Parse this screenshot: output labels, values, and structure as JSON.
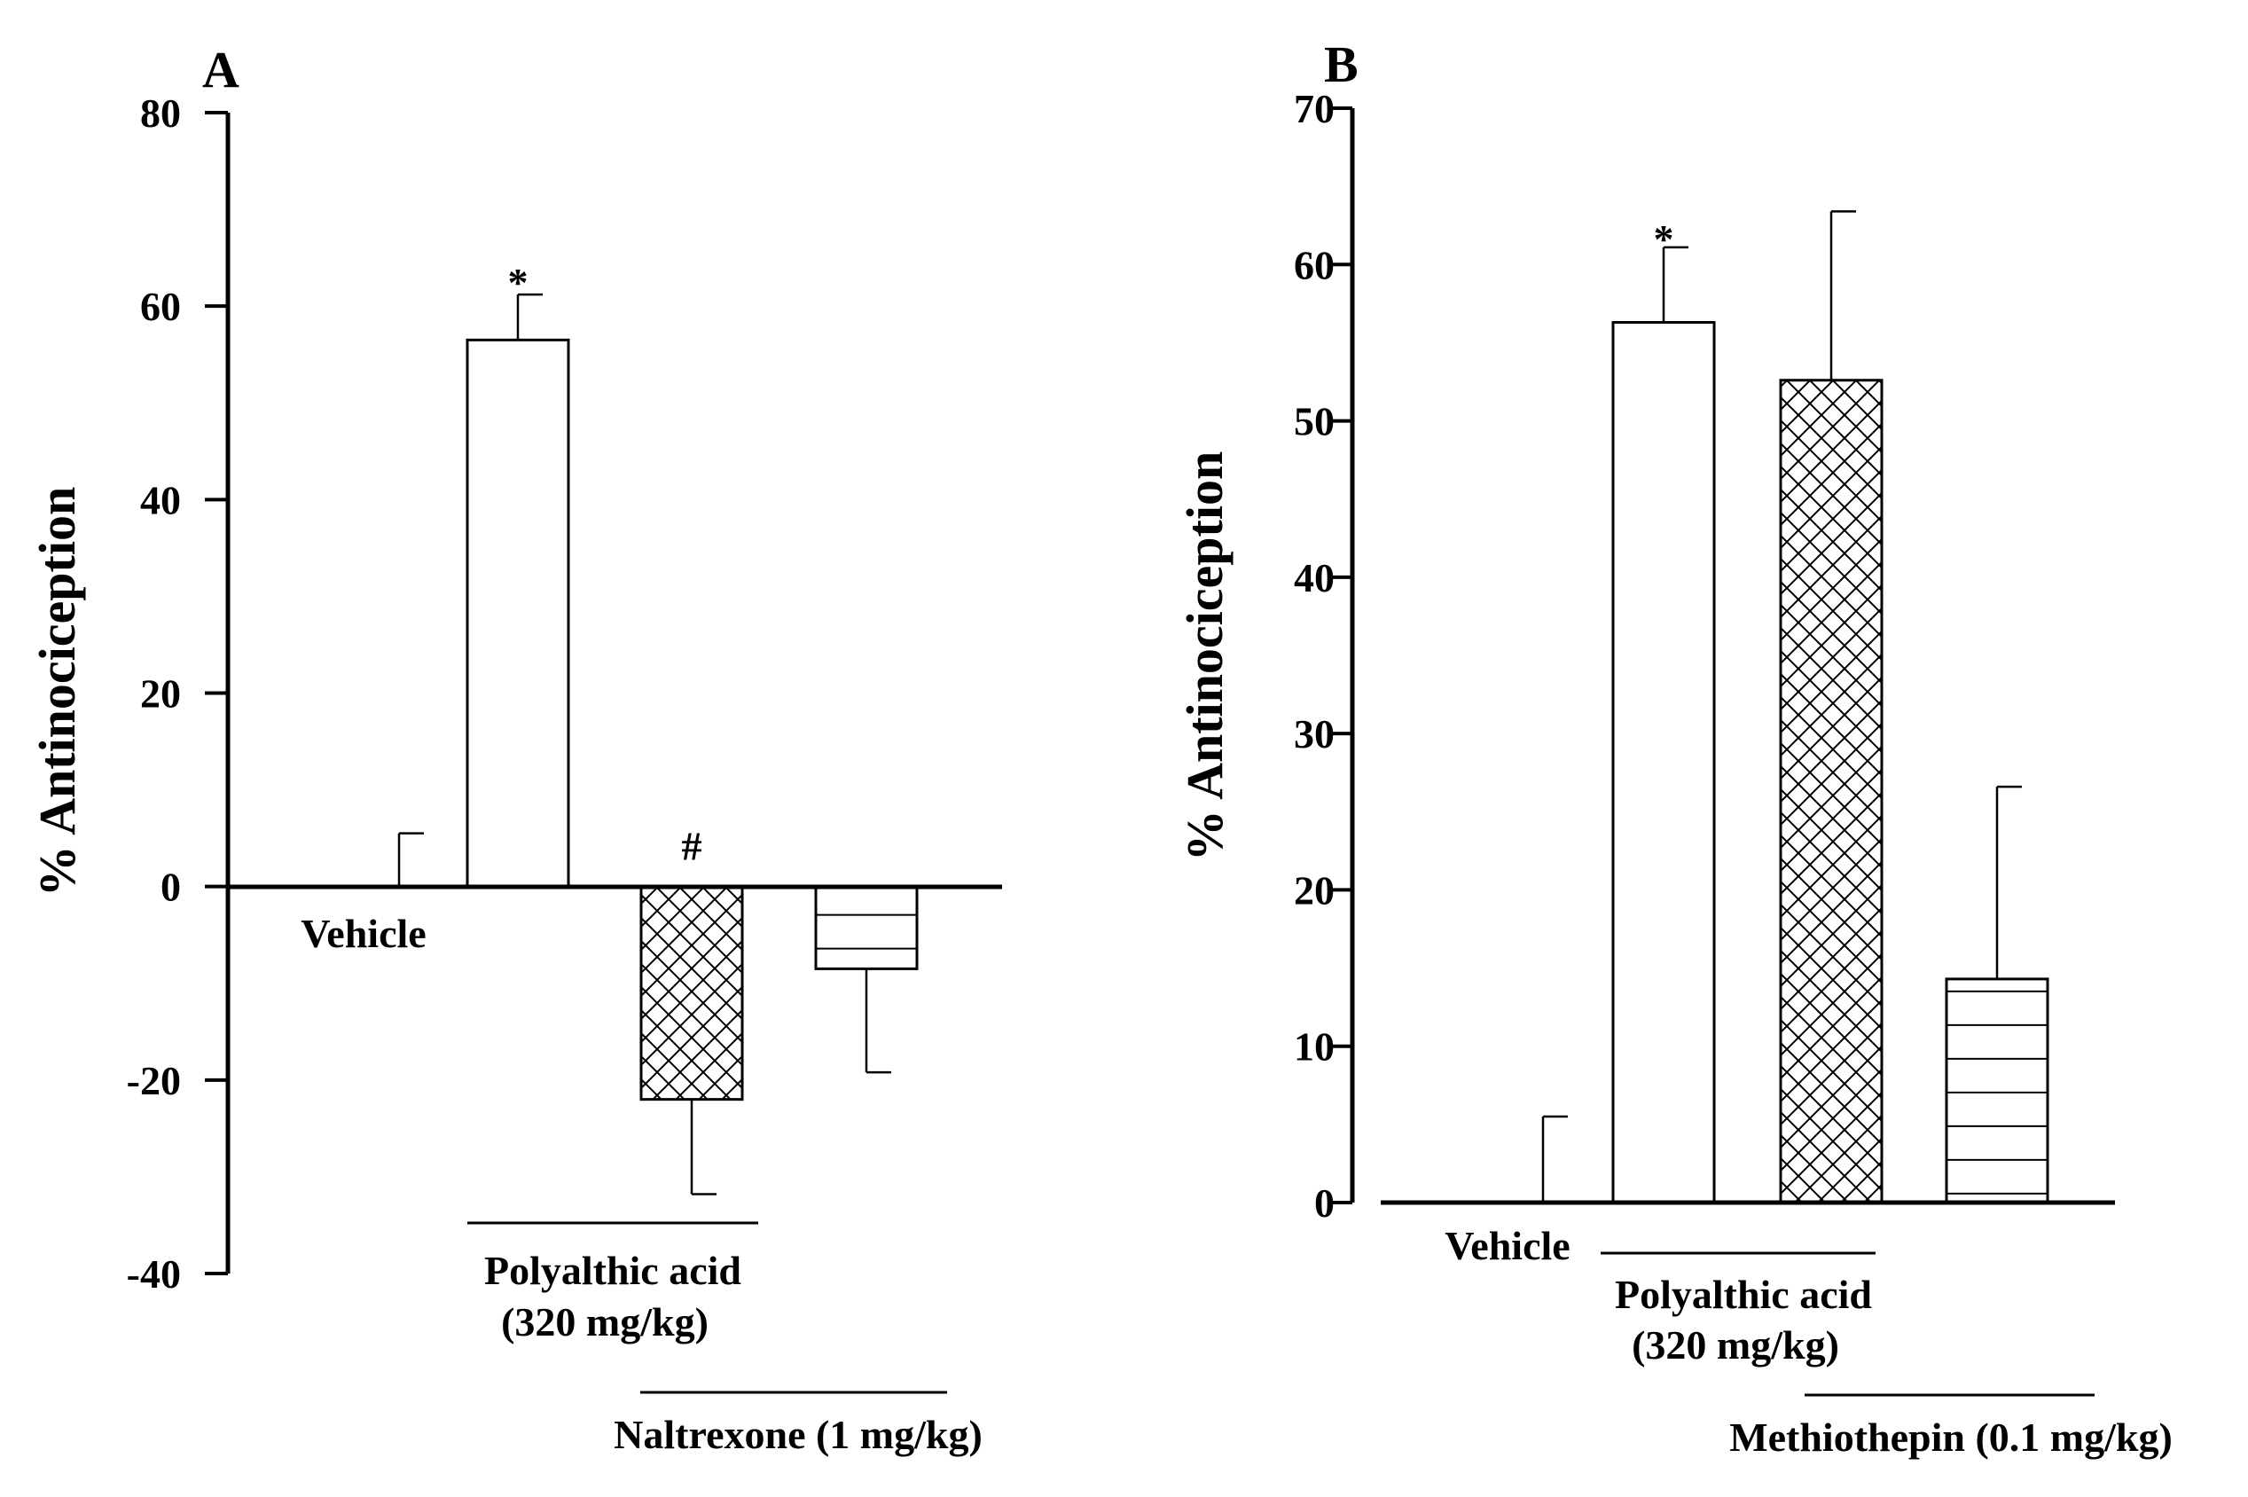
{
  "chart_data": [
    {
      "type": "bar",
      "panel": "A",
      "ylabel": "% Antinociception",
      "ylim": [
        -40,
        80
      ],
      "yticks": [
        -40,
        -20,
        0,
        20,
        40,
        60,
        80
      ],
      "ytick_labels": [
        "-40",
        "-20",
        "0",
        "20",
        "40",
        "60",
        "80"
      ],
      "bars": [
        {
          "label": "Vehicle",
          "value": 0,
          "error": 5.5,
          "pattern": "none",
          "annotation": ""
        },
        {
          "label": "Polyalthic acid",
          "value": 56.5,
          "error": 4.7,
          "pattern": "open",
          "annotation": "*"
        },
        {
          "label": "Polyalthic acid + Naltrexone",
          "value": -22,
          "error": 9.8,
          "pattern": "crosshatch",
          "annotation": "#"
        },
        {
          "label": "Naltrexone",
          "value": -8.5,
          "error": 10.7,
          "pattern": "horizontal",
          "annotation": ""
        }
      ],
      "xlabels": {
        "vehicle": "Vehicle",
        "treatment_line1": "Polyalthic acid",
        "treatment_line2": "(320 mg/kg)",
        "antagonist": "Naltrexone (1 mg/kg)"
      }
    },
    {
      "type": "bar",
      "panel": "B",
      "ylabel": "% Antinociception",
      "ylim": [
        0,
        70
      ],
      "yticks": [
        0,
        10,
        20,
        30,
        40,
        50,
        60,
        70
      ],
      "ytick_labels": [
        "0",
        "10",
        "20",
        "30",
        "40",
        "50",
        "60",
        "70"
      ],
      "bars": [
        {
          "label": "Vehicle",
          "value": 0,
          "error": 5.5,
          "pattern": "none",
          "annotation": ""
        },
        {
          "label": "Polyalthic acid",
          "value": 56.3,
          "error": 4.8,
          "pattern": "open",
          "annotation": "*"
        },
        {
          "label": "Polyalthic acid + Methiothepin",
          "value": 52.6,
          "error": 10.8,
          "pattern": "crosshatch",
          "annotation": ""
        },
        {
          "label": "Methiothepin",
          "value": 14.3,
          "error": 12.3,
          "pattern": "horizontal",
          "annotation": ""
        }
      ],
      "xlabels": {
        "vehicle": "Vehicle",
        "treatment_line1": "Polyalthic acid",
        "treatment_line2": "(320 mg/kg)",
        "antagonist": "Methiothepin (0.1 mg/kg)"
      }
    }
  ]
}
